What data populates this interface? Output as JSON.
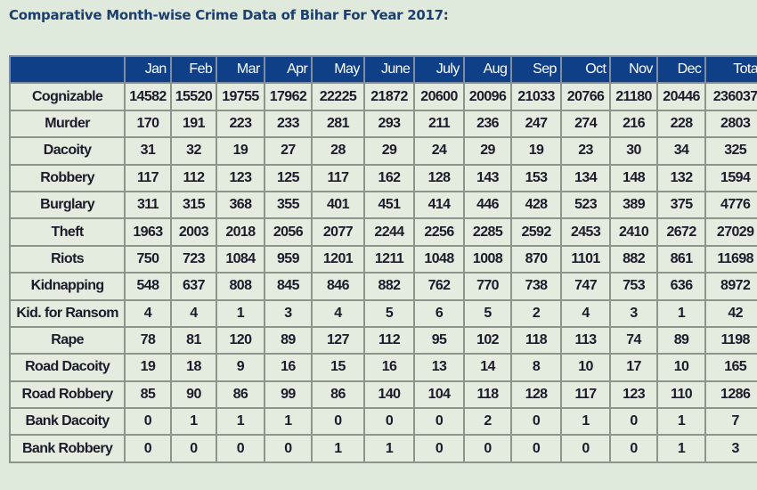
{
  "title": "Comparative Month-wise Crime Data of Bihar For Year 2017:",
  "colors": {
    "header_bg": "#0f3f86",
    "cell_bg": "#e3ecdf",
    "page_bg": "#dfe9dc",
    "title": "#1d3f6e"
  },
  "table": {
    "columns": [
      "",
      "Jan",
      "Feb",
      "Mar",
      "Apr",
      "May",
      "June",
      "July",
      "Aug",
      "Sep",
      "Oct",
      "Nov",
      "Dec",
      "Total"
    ],
    "rows": [
      {
        "label": "Cognizable",
        "values": [
          "14582",
          "15520",
          "19755",
          "17962",
          "22225",
          "21872",
          "20600",
          "20096",
          "21033",
          "20766",
          "21180",
          "20446",
          "236037"
        ]
      },
      {
        "label": "Murder",
        "values": [
          "170",
          "191",
          "223",
          "233",
          "281",
          "293",
          "211",
          "236",
          "247",
          "274",
          "216",
          "228",
          "2803"
        ]
      },
      {
        "label": "Dacoity",
        "values": [
          "31",
          "32",
          "19",
          "27",
          "28",
          "29",
          "24",
          "29",
          "19",
          "23",
          "30",
          "34",
          "325"
        ]
      },
      {
        "label": "Robbery",
        "values": [
          "117",
          "112",
          "123",
          "125",
          "117",
          "162",
          "128",
          "143",
          "153",
          "134",
          "148",
          "132",
          "1594"
        ]
      },
      {
        "label": "Burglary",
        "values": [
          "311",
          "315",
          "368",
          "355",
          "401",
          "451",
          "414",
          "446",
          "428",
          "523",
          "389",
          "375",
          "4776"
        ]
      },
      {
        "label": "Theft",
        "values": [
          "1963",
          "2003",
          "2018",
          "2056",
          "2077",
          "2244",
          "2256",
          "2285",
          "2592",
          "2453",
          "2410",
          "2672",
          "27029"
        ]
      },
      {
        "label": "Riots",
        "values": [
          "750",
          "723",
          "1084",
          "959",
          "1201",
          "1211",
          "1048",
          "1008",
          "870",
          "1101",
          "882",
          "861",
          "11698"
        ]
      },
      {
        "label": "Kidnapping",
        "values": [
          "548",
          "637",
          "808",
          "845",
          "846",
          "882",
          "762",
          "770",
          "738",
          "747",
          "753",
          "636",
          "8972"
        ]
      },
      {
        "label": "Kid. for Ransom",
        "values": [
          "4",
          "4",
          "1",
          "3",
          "4",
          "5",
          "6",
          "5",
          "2",
          "4",
          "3",
          "1",
          "42"
        ]
      },
      {
        "label": "Rape",
        "values": [
          "78",
          "81",
          "120",
          "89",
          "127",
          "112",
          "95",
          "102",
          "118",
          "113",
          "74",
          "89",
          "1198"
        ]
      },
      {
        "label": "Road Dacoity",
        "values": [
          "19",
          "18",
          "9",
          "16",
          "15",
          "16",
          "13",
          "14",
          "8",
          "10",
          "17",
          "10",
          "165"
        ]
      },
      {
        "label": "Road Robbery",
        "values": [
          "85",
          "90",
          "86",
          "99",
          "86",
          "140",
          "104",
          "118",
          "128",
          "117",
          "123",
          "110",
          "1286"
        ]
      },
      {
        "label": "Bank Dacoity",
        "values": [
          "0",
          "1",
          "1",
          "1",
          "0",
          "0",
          "0",
          "2",
          "0",
          "1",
          "0",
          "1",
          "7"
        ]
      },
      {
        "label": "Bank Robbery",
        "values": [
          "0",
          "0",
          "0",
          "0",
          "1",
          "1",
          "0",
          "0",
          "0",
          "0",
          "0",
          "1",
          "3"
        ]
      }
    ]
  }
}
